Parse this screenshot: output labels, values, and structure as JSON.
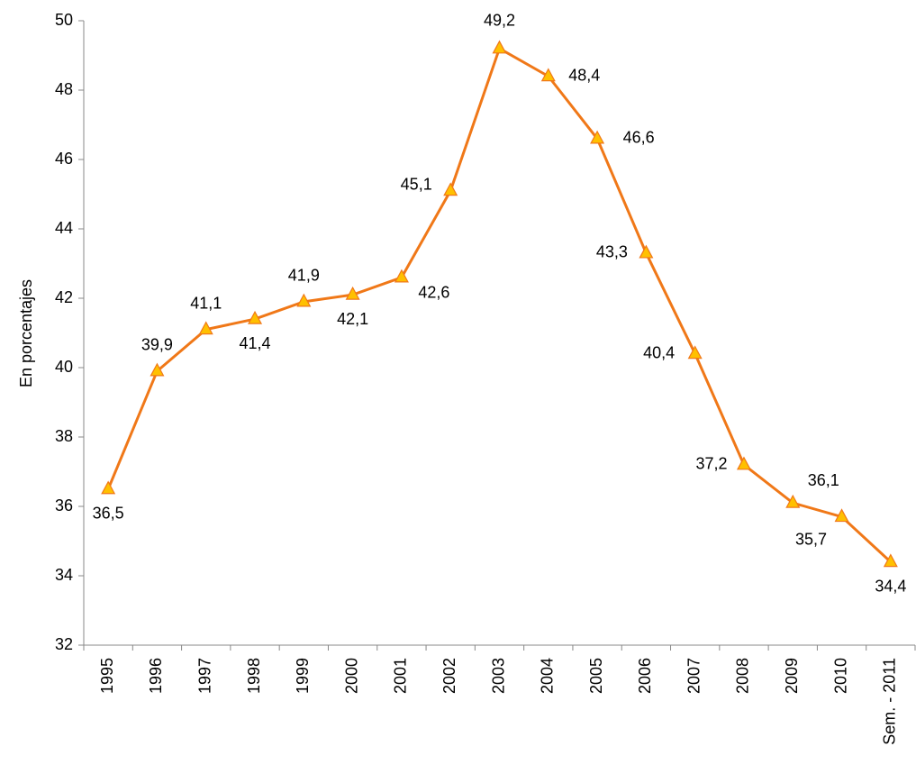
{
  "chart_data": {
    "type": "line",
    "y_label": "En porcentajes",
    "categories": [
      "1995",
      "1996",
      "1997",
      "1998",
      "1999",
      "2000",
      "2001",
      "2002",
      "2003",
      "2004",
      "2005",
      "2006",
      "2007",
      "2008",
      "2009",
      "2010",
      "Sem. - 2011"
    ],
    "series": [
      {
        "color": "#f07818",
        "marker_color": "#ffc000",
        "values": [
          36.5,
          39.9,
          41.1,
          41.4,
          41.9,
          42.1,
          42.6,
          45.1,
          49.2,
          48.4,
          46.6,
          43.3,
          40.4,
          37.2,
          36.1,
          35.7,
          34.4
        ],
        "value_labels": [
          "36,5",
          "39,9",
          "41,1",
          "41,4",
          "41,9",
          "42,1",
          "42,6",
          "45,1",
          "49,2",
          "48,4",
          "46,6",
          "43,3",
          "40,4",
          "37,2",
          "36,1",
          "35,7",
          "34,4"
        ]
      }
    ],
    "ylim": [
      32,
      50
    ],
    "yticks": [
      32,
      34,
      36,
      38,
      40,
      42,
      44,
      46,
      48,
      50
    ],
    "grid": false
  }
}
